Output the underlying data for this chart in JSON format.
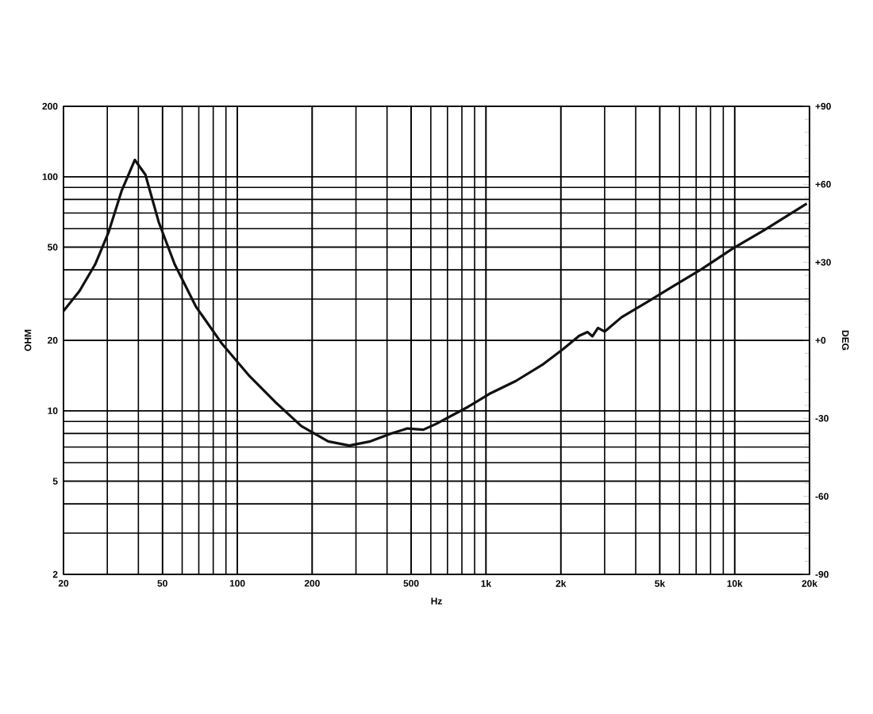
{
  "chart_data": {
    "type": "line",
    "xlabel": "Hz",
    "ylabel": "OHM",
    "y2label": "DEG",
    "log": "xy",
    "grid": true,
    "marker": "none",
    "line_style": "solid",
    "xlim": [
      20,
      20000
    ],
    "ylim": [
      2,
      200
    ],
    "y2lim": [
      -90,
      90
    ],
    "xticks": [
      20,
      50,
      100,
      200,
      500,
      {
        "value": 1000,
        "label": "1k"
      },
      {
        "value": 2000,
        "label": "2k"
      },
      {
        "value": 5000,
        "label": "5k"
      },
      {
        "value": 10000,
        "label": "10k"
      },
      {
        "value": 20000,
        "label": "20k"
      }
    ],
    "yticks": [
      2,
      5,
      10,
      20,
      50,
      100,
      200
    ],
    "y2ticks": [
      -90,
      -60,
      -30,
      {
        "value": 0,
        "label": "+0"
      },
      {
        "value": 30,
        "label": "+30"
      },
      {
        "value": 60,
        "label": "+60"
      },
      {
        "value": 90,
        "label": "+90"
      }
    ],
    "series": [
      {
        "color": "#111111",
        "x": [
          20,
          23.2,
          26.8,
          30.3,
          34.3,
          38.7,
          42.7,
          48.3,
          56,
          68.1,
          86.9,
          111,
          142,
          181,
          232,
          282,
          343,
          417,
          483,
          560,
          632,
          848,
          1031,
          1318,
          1683,
          2047,
          2371,
          2560,
          2680,
          2820,
          3000,
          3510,
          4480,
          5720,
          7310,
          9810,
          13180,
          19500
        ],
        "values": [
          26.7,
          32.5,
          42.2,
          57.6,
          87.4,
          118,
          102,
          64,
          42.2,
          27.9,
          19.3,
          14.2,
          10.9,
          8.6,
          7.4,
          7.1,
          7.4,
          8.0,
          8.4,
          8.3,
          8.8,
          10.4,
          11.8,
          13.4,
          15.7,
          18.4,
          20.9,
          21.7,
          20.8,
          22.6,
          21.8,
          25.1,
          29.3,
          34.3,
          40.1,
          49.3,
          59.2,
          76.8
        ]
      }
    ]
  }
}
